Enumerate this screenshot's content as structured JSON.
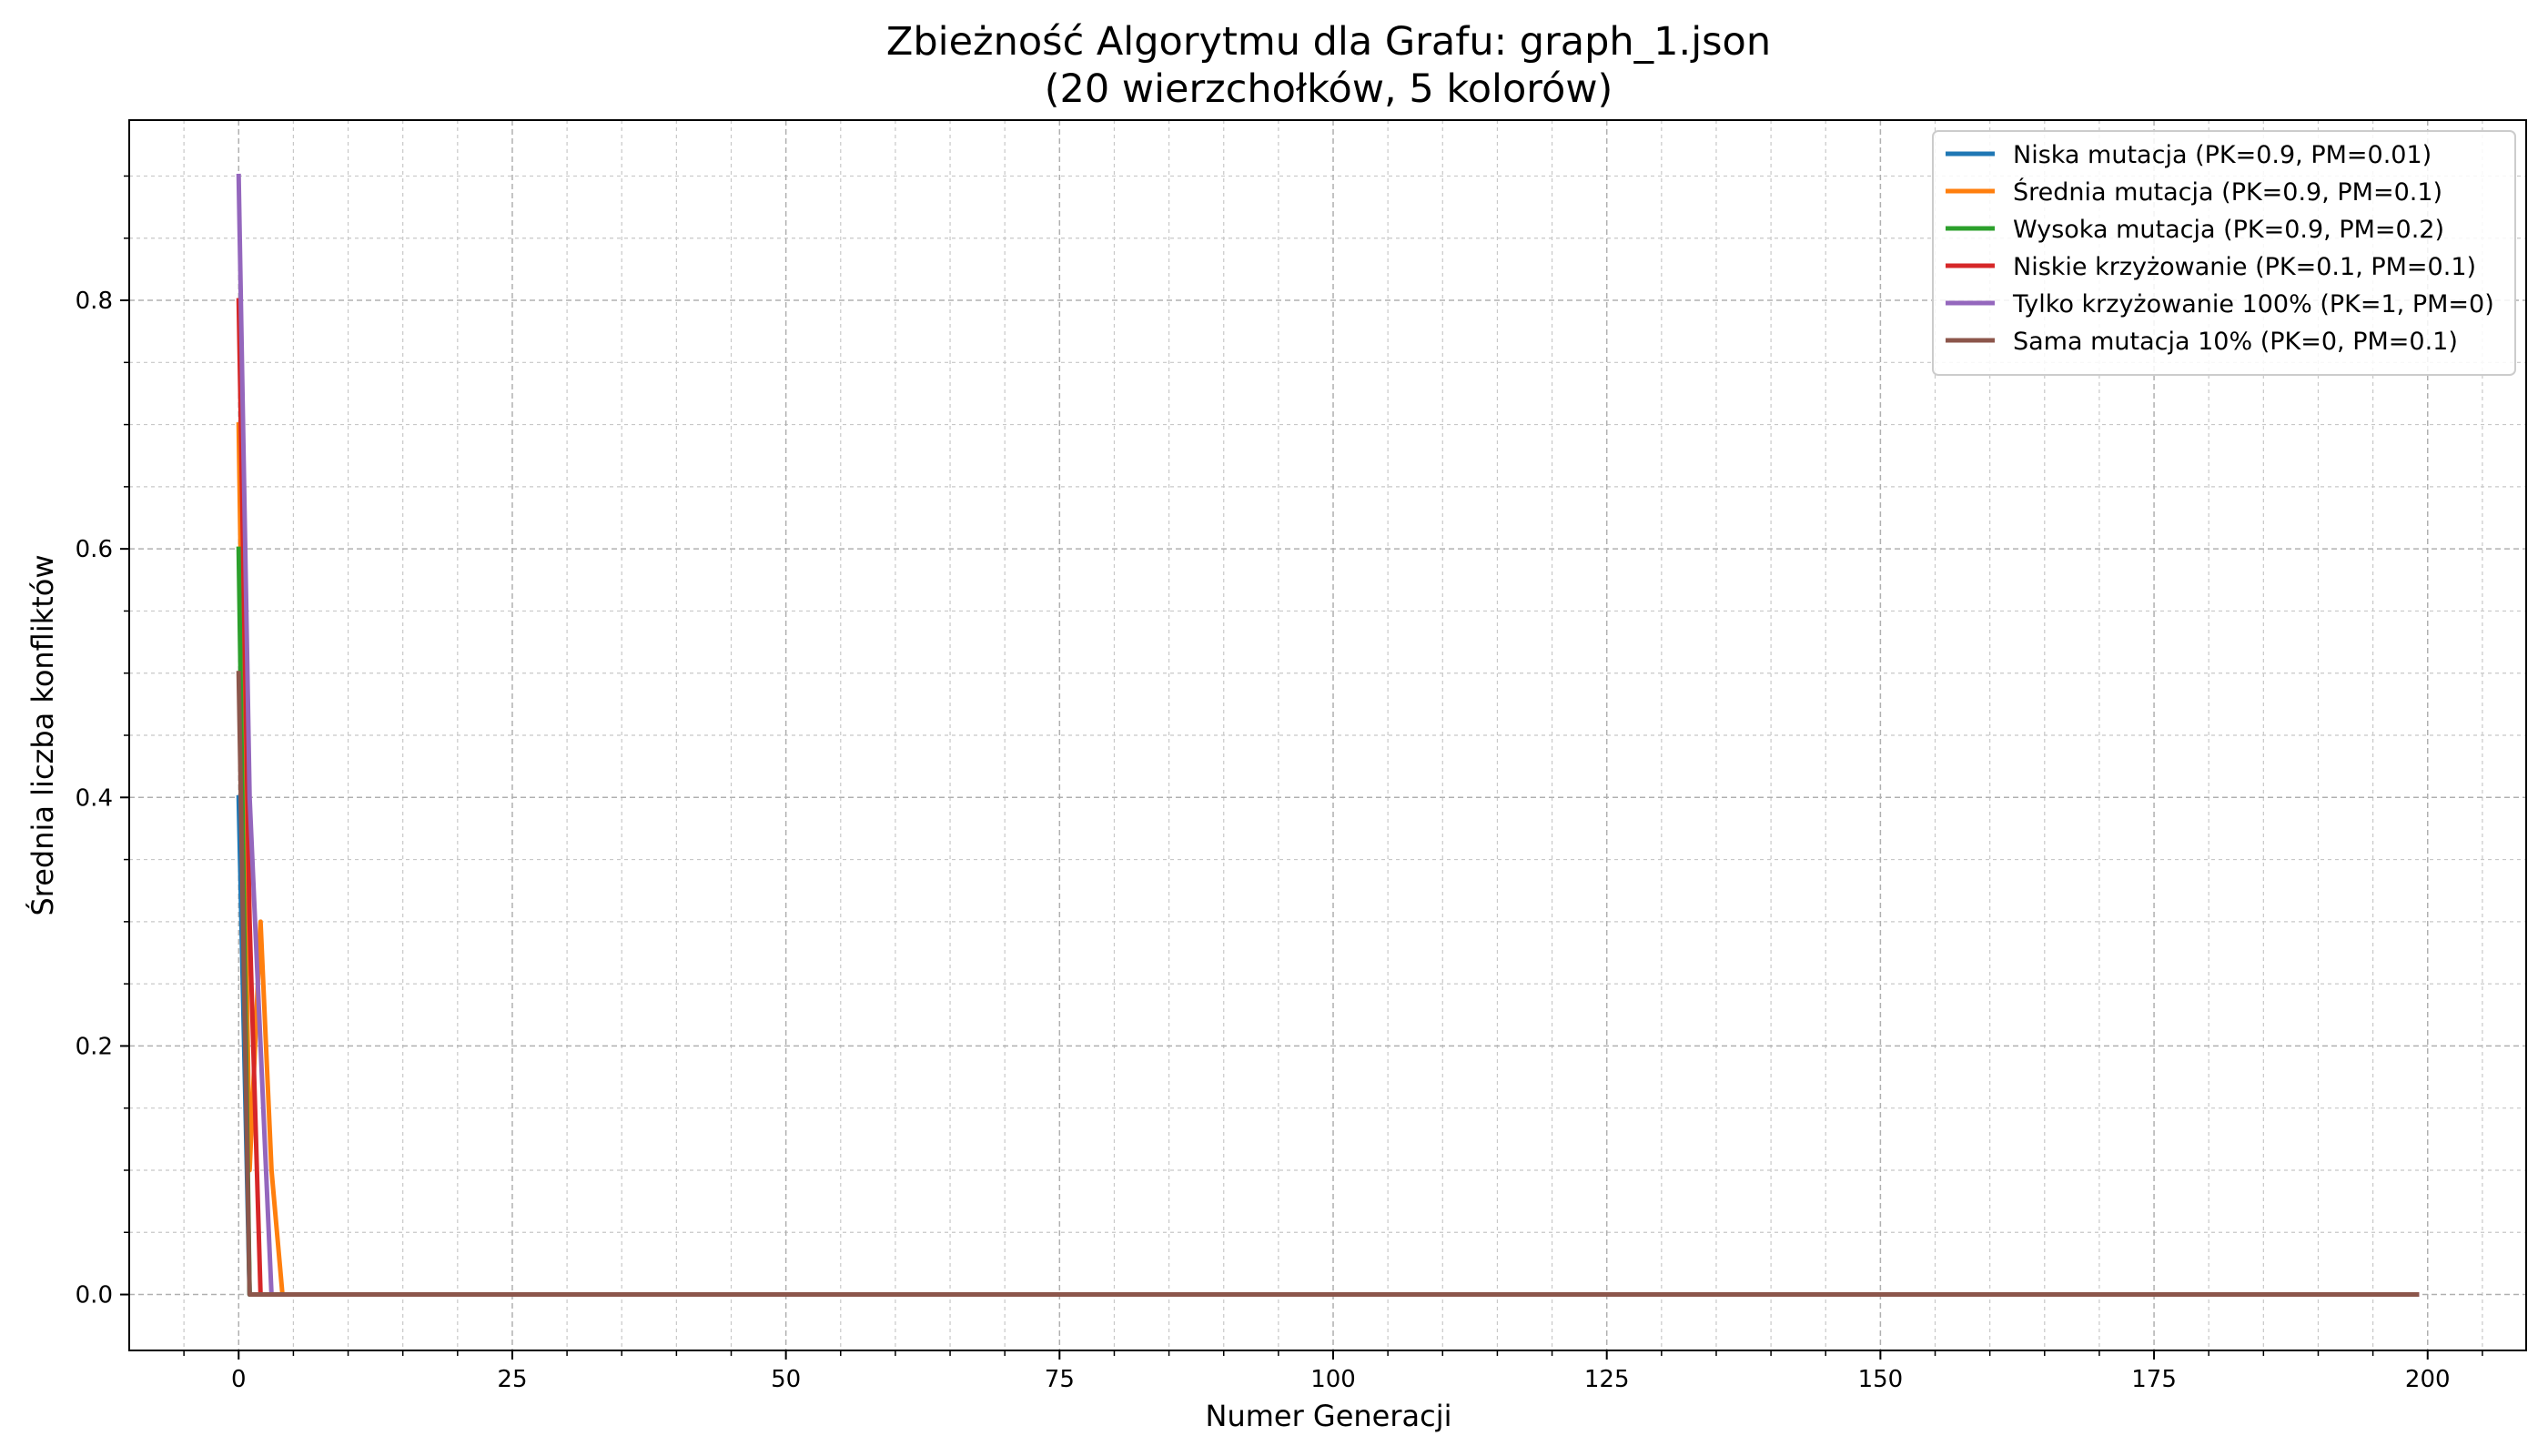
{
  "chart_data": {
    "type": "line",
    "title": "Zbieżność Algorytmu dla Grafu: graph_1.json",
    "subtitle": "(20 wierzchołków, 5 kolorów)",
    "xlabel": "Numer Generacji",
    "ylabel": "Średnia liczba konfliktów",
    "xlim": [
      -10,
      209
    ],
    "ylim": [
      -0.045,
      0.945
    ],
    "xticks": [
      0,
      25,
      50,
      75,
      100,
      125,
      150,
      175,
      200
    ],
    "yticks": [
      0.0,
      0.2,
      0.4,
      0.6,
      0.8
    ],
    "xtick_labels": [
      "0",
      "25",
      "50",
      "75",
      "100",
      "125",
      "150",
      "175",
      "200"
    ],
    "ytick_labels": [
      "0.0",
      "0.2",
      "0.4",
      "0.6",
      "0.8"
    ],
    "grid": true,
    "minor_grid": true,
    "legend_position": "top-right",
    "series": [
      {
        "name": "Niska mutacja (PK=0.9, PM=0.01)",
        "color": "#1f77b4",
        "x": [
          0,
          1,
          2,
          199
        ],
        "y": [
          0.4,
          0.0,
          0.0,
          0.0
        ]
      },
      {
        "name": "Średnia mutacja (PK=0.9, PM=0.1)",
        "color": "#ff7f0e",
        "x": [
          0,
          1,
          2,
          3,
          4,
          5,
          199
        ],
        "y": [
          0.7,
          0.1,
          0.3,
          0.1,
          0.0,
          0.0,
          0.0
        ]
      },
      {
        "name": "Wysoka mutacja (PK=0.9, PM=0.2)",
        "color": "#2ca02c",
        "x": [
          0,
          1,
          2,
          199
        ],
        "y": [
          0.6,
          0.0,
          0.0,
          0.0
        ]
      },
      {
        "name": "Niskie krzyżowanie (PK=0.1, PM=0.1)",
        "color": "#d62728",
        "x": [
          0,
          1,
          2,
          3,
          199
        ],
        "y": [
          0.8,
          0.3,
          0.0,
          0.0,
          0.0
        ]
      },
      {
        "name": "Tylko krzyżowanie 100% (PK=1, PM=0)",
        "color": "#9467bd",
        "x": [
          0,
          1,
          2,
          3,
          4,
          199
        ],
        "y": [
          0.9,
          0.4,
          0.2,
          0.0,
          0.0,
          0.0
        ]
      },
      {
        "name": "Sama mutacja 10% (PK=0, PM=0.1)",
        "color": "#8c564b",
        "x": [
          0,
          1,
          2,
          199
        ],
        "y": [
          0.5,
          0.0,
          0.0,
          0.0
        ]
      }
    ]
  }
}
